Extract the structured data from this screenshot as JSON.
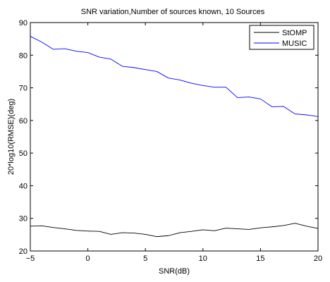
{
  "chart_data": {
    "type": "line",
    "title": "SNR variation,Number of sources known, 10 Sources",
    "xlabel": "SNR(dB)",
    "ylabel": "20*log10(RMSE)(deg)",
    "xlim": [
      -5,
      20
    ],
    "ylim": [
      20,
      90
    ],
    "xticks": [
      -5,
      0,
      5,
      10,
      15,
      20
    ],
    "yticks": [
      20,
      30,
      40,
      50,
      60,
      70,
      80,
      90
    ],
    "grid": false,
    "legend_position": "top-right",
    "x": [
      -5,
      -4,
      -3,
      -2,
      -1,
      0,
      1,
      2,
      3,
      4,
      5,
      6,
      7,
      8,
      9,
      10,
      11,
      12,
      13,
      14,
      15,
      16,
      17,
      18,
      19,
      20
    ],
    "series": [
      {
        "name": "StOMP",
        "color": "#000000",
        "values": [
          27.6,
          27.7,
          27.2,
          26.8,
          26.3,
          26.1,
          26.0,
          25.1,
          25.6,
          25.5,
          25.1,
          24.4,
          24.7,
          25.6,
          26.0,
          26.5,
          26.2,
          27.0,
          26.8,
          26.6,
          27.1,
          27.4,
          27.8,
          28.5,
          27.6,
          26.9
        ]
      },
      {
        "name": "MUSIC",
        "color": "#0000ff",
        "values": [
          85.8,
          84.0,
          81.8,
          82.0,
          81.2,
          80.8,
          79.4,
          78.8,
          76.6,
          76.2,
          75.6,
          75.0,
          73.0,
          72.4,
          71.4,
          70.7,
          70.2,
          70.2,
          67.0,
          67.2,
          66.6,
          64.2,
          64.3,
          62.0,
          61.7,
          61.2
        ]
      }
    ]
  }
}
